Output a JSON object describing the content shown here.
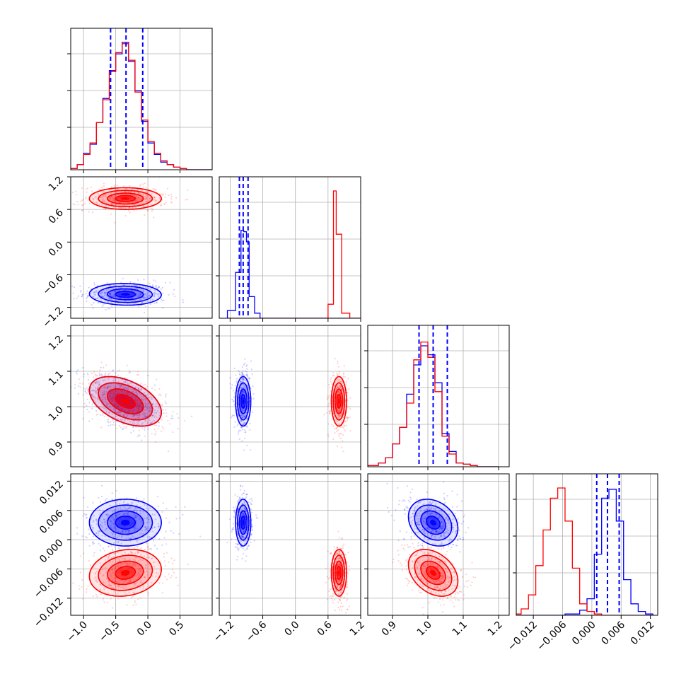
{
  "colors": {
    "series_a": "#0000ff",
    "series_b": "#ff0000",
    "grid": "#b0b0b0",
    "frame": "#000000"
  },
  "chart_data": {
    "type": "corner",
    "description": "Corner plot of 4 parameters, two overlaid posterior sample sets",
    "grid": true,
    "legend": "none",
    "series": [
      {
        "color": "blue",
        "quantiles_16_50_84": [
          [
            -0.58,
            -0.34,
            -0.08
          ],
          [
            -1.03,
            -0.96,
            -0.87
          ],
          [
            0.975,
            1.015,
            1.055
          ],
          [
            0.001,
            0.0032,
            0.0056
          ]
        ],
        "centers": [
          -0.35,
          -0.96,
          1.015,
          0.0032
        ]
      },
      {
        "color": "red",
        "centers": [
          -0.35,
          0.8,
          1.015,
          -0.0068
        ]
      }
    ],
    "params": [
      {
        "index": 0,
        "range": [
          -1.2,
          1.0
        ],
        "ticks": [
          -1.0,
          -0.5,
          0.0,
          0.5
        ],
        "tick_labels": [
          "−1.0",
          "−0.5",
          "0.0",
          "0.5"
        ]
      },
      {
        "index": 1,
        "range": [
          -1.4,
          1.2
        ],
        "ticks": [
          -1.2,
          -0.6,
          0.0,
          0.6,
          1.2
        ],
        "tick_labels": [
          "−1.2",
          "−0.6",
          "0.0",
          "0.6",
          "1.2"
        ]
      },
      {
        "index": 2,
        "range": [
          0.83,
          1.23
        ],
        "ticks": [
          0.9,
          1.0,
          1.1,
          1.2
        ],
        "tick_labels": [
          "0.9",
          "1.0",
          "1.1",
          "1.2"
        ]
      },
      {
        "index": 3,
        "range": [
          -0.0155,
          0.0135
        ],
        "ticks": [
          -0.012,
          -0.006,
          0.0,
          0.006,
          0.012
        ],
        "tick_labels": [
          "−0.012",
          "−0.006",
          "0.000",
          "0.006",
          "0.012"
        ]
      }
    ],
    "hist1d": [
      {
        "param": 0,
        "bins_edges": [
          -1.2,
          -1.1,
          -1.0,
          -0.9,
          -0.8,
          -0.7,
          -0.6,
          -0.5,
          -0.4,
          -0.3,
          -0.2,
          -0.1,
          0.0,
          0.1,
          0.2,
          0.3,
          0.4,
          0.5,
          0.6,
          1.0
        ],
        "blue": [
          0.01,
          0.04,
          0.13,
          0.2,
          0.37,
          0.56,
          0.78,
          0.91,
          1.0,
          0.85,
          0.62,
          0.38,
          0.21,
          0.12,
          0.06,
          0.04,
          0.02,
          0.01,
          0.0
        ],
        "red": [
          0.01,
          0.04,
          0.12,
          0.21,
          0.37,
          0.55,
          0.77,
          0.92,
          0.99,
          0.86,
          0.61,
          0.39,
          0.22,
          0.13,
          0.07,
          0.04,
          0.02,
          0.01,
          0.0
        ]
      },
      {
        "param": 1,
        "bins_edges": [
          -1.25,
          -1.1,
          -1.0,
          -0.95,
          -0.9,
          -0.85,
          -0.75,
          -0.65,
          0.6,
          0.7,
          0.75,
          0.85,
          1.0,
          1.2
        ],
        "blue": [
          0.06,
          0.36,
          0.69,
          0.68,
          0.6,
          0.17,
          0.04,
          0.0,
          0.0,
          0.0,
          0.0,
          0.0,
          0.0
        ],
        "red": [
          0.0,
          0.0,
          0.0,
          0.0,
          0.0,
          0.0,
          0.0,
          0.0,
          0.11,
          1.0,
          0.66,
          0.04,
          0.0
        ]
      },
      {
        "param": 2,
        "bins_edges": [
          0.83,
          0.86,
          0.88,
          0.9,
          0.92,
          0.94,
          0.96,
          0.98,
          1.0,
          1.02,
          1.04,
          1.06,
          1.08,
          1.1,
          1.12,
          1.14,
          1.2
        ],
        "blue": [
          0.01,
          0.03,
          0.07,
          0.18,
          0.31,
          0.57,
          0.8,
          0.95,
          0.88,
          0.66,
          0.26,
          0.12,
          0.03,
          0.02,
          0.01,
          0.0
        ],
        "red": [
          0.01,
          0.03,
          0.07,
          0.18,
          0.31,
          0.5,
          0.84,
          0.98,
          0.86,
          0.59,
          0.24,
          0.1,
          0.03,
          0.02,
          0.01,
          0.0
        ]
      },
      {
        "param": 3,
        "bins_edges": [
          -0.0155,
          -0.0145,
          -0.013,
          -0.0115,
          -0.01,
          -0.0085,
          -0.007,
          -0.0055,
          -0.004,
          -0.0025,
          -0.001,
          0.0005,
          0.002,
          0.0035,
          0.005,
          0.0065,
          0.008,
          0.0095,
          0.011,
          0.0125
        ],
        "blue": [
          0.0,
          0.0,
          0.0,
          0.0,
          0.0,
          0.0,
          0.0,
          0.01,
          0.01,
          0.04,
          0.13,
          0.48,
          0.92,
          0.99,
          0.74,
          0.28,
          0.09,
          0.03,
          0.01
        ],
        "red": [
          0.01,
          0.05,
          0.16,
          0.39,
          0.67,
          0.92,
          1.0,
          0.74,
          0.37,
          0.09,
          0.03,
          0.01,
          0.0,
          0.0,
          0.0,
          0.0,
          0.0,
          0.0,
          0.0
        ]
      }
    ],
    "hist2d": [
      {
        "x": 0,
        "y": 1,
        "blue": {
          "center": [
            -0.35,
            -0.96
          ],
          "sd": [
            0.28,
            0.1
          ],
          "rho": -0.05
        },
        "red": {
          "center": [
            -0.35,
            0.8
          ],
          "sd": [
            0.28,
            0.1
          ],
          "rho": 0.0
        }
      },
      {
        "x": 0,
        "y": 2,
        "blue": {
          "center": [
            -0.35,
            1.015
          ],
          "sd": [
            0.28,
            0.035
          ],
          "rho": -0.45
        },
        "red": {
          "center": [
            -0.35,
            1.015
          ],
          "sd": [
            0.28,
            0.035
          ],
          "rho": -0.45
        }
      },
      {
        "x": 0,
        "y": 3,
        "blue": {
          "center": [
            -0.35,
            0.0035
          ],
          "sd": [
            0.28,
            0.0024
          ],
          "rho": 0.0
        },
        "red": {
          "center": [
            -0.35,
            -0.0068
          ],
          "sd": [
            0.28,
            0.0024
          ],
          "rho": 0.15
        }
      },
      {
        "x": 1,
        "y": 2,
        "blue": {
          "center": [
            -0.96,
            1.015
          ],
          "sd": [
            0.07,
            0.035
          ],
          "rho": 0.0
        },
        "red": {
          "center": [
            0.8,
            1.015
          ],
          "sd": [
            0.07,
            0.035
          ],
          "rho": 0.0
        }
      },
      {
        "x": 1,
        "y": 3,
        "blue": {
          "center": [
            -0.96,
            0.0035
          ],
          "sd": [
            0.07,
            0.0024
          ],
          "rho": 0.0
        },
        "red": {
          "center": [
            0.8,
            -0.0068
          ],
          "sd": [
            0.07,
            0.0024
          ],
          "rho": 0.0
        }
      },
      {
        "x": 2,
        "y": 3,
        "blue": {
          "center": [
            1.015,
            0.0035
          ],
          "sd": [
            0.035,
            0.0024
          ],
          "rho": -0.25
        },
        "red": {
          "center": [
            1.015,
            -0.0068
          ],
          "sd": [
            0.035,
            0.0024
          ],
          "rho": -0.35
        }
      }
    ]
  }
}
